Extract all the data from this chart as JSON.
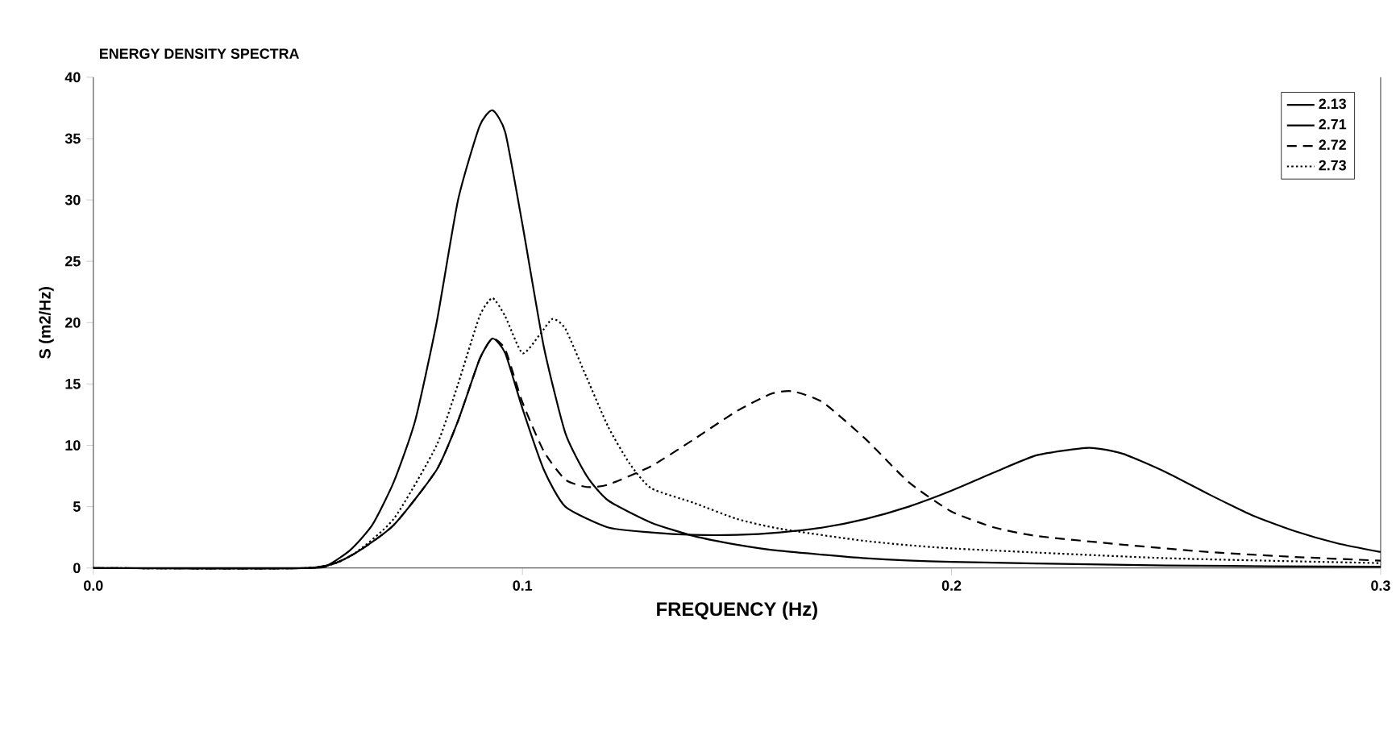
{
  "chart_data": {
    "type": "line",
    "title": "ENERGY DENSITY SPECTRA",
    "xlabel": "FREQUENCY (Hz)",
    "ylabel": "S (m2/Hz)",
    "xlim": [
      0,
      0.3
    ],
    "ylim": [
      0,
      40
    ],
    "xticks": [
      {
        "value": 0,
        "label": "0.0"
      },
      0.1,
      0.2,
      0.3
    ],
    "yticks": [
      0,
      5,
      10,
      15,
      20,
      25,
      30,
      35,
      40
    ],
    "grid": false,
    "legend": "top right",
    "marker": "none",
    "series": [
      {
        "name": "2.13",
        "color": "#000000",
        "line_style": "solid",
        "x": [
          0,
          0.05,
          0.055,
          0.06,
          0.065,
          0.07,
          0.075,
          0.08,
          0.085,
          0.09,
          0.093,
          0.096,
          0.1,
          0.105,
          0.11,
          0.115,
          0.12,
          0.13,
          0.14,
          0.15,
          0.16,
          0.18,
          0.2,
          0.25,
          0.3
        ],
        "values": [
          0,
          0,
          0.3,
          1.5,
          3.5,
          7,
          12,
          20,
          30,
          36,
          37.3,
          35.5,
          28,
          18,
          11,
          7.5,
          5.5,
          3.7,
          2.6,
          1.9,
          1.4,
          0.8,
          0.5,
          0.2,
          0.1
        ]
      },
      {
        "name": "2.71",
        "color": "#000000",
        "line_style": "solid",
        "x": [
          0,
          0.05,
          0.06,
          0.07,
          0.08,
          0.085,
          0.09,
          0.093,
          0.096,
          0.1,
          0.105,
          0.11,
          0.12,
          0.13,
          0.14,
          0.15,
          0.16,
          0.17,
          0.18,
          0.19,
          0.2,
          0.21,
          0.22,
          0.232,
          0.24,
          0.25,
          0.26,
          0.27,
          0.28,
          0.29,
          0.3
        ],
        "values": [
          0,
          0,
          1,
          3.5,
          8,
          12,
          17,
          18.7,
          17.5,
          13,
          8,
          5,
          3.3,
          2.9,
          2.7,
          2.7,
          2.9,
          3.3,
          4,
          5,
          6.3,
          7.8,
          9.2,
          9.8,
          9.3,
          7.8,
          6,
          4.3,
          3,
          2,
          1.3
        ]
      },
      {
        "name": "2.72",
        "color": "#000000",
        "line_style": "dashed",
        "x": [
          0,
          0.05,
          0.06,
          0.07,
          0.08,
          0.085,
          0.09,
          0.093,
          0.096,
          0.1,
          0.105,
          0.11,
          0.115,
          0.12,
          0.13,
          0.14,
          0.15,
          0.158,
          0.163,
          0.17,
          0.18,
          0.19,
          0.2,
          0.21,
          0.22,
          0.24,
          0.26,
          0.28,
          0.3
        ],
        "values": [
          0,
          0,
          1,
          3.5,
          8,
          12,
          17,
          18.7,
          17.8,
          13.5,
          9.5,
          7.2,
          6.6,
          6.8,
          8.3,
          10.5,
          12.8,
          14.2,
          14.4,
          13.5,
          10.5,
          7,
          4.6,
          3.3,
          2.6,
          1.9,
          1.3,
          0.9,
          0.6
        ]
      },
      {
        "name": "2.73",
        "color": "#000000",
        "line_style": "dotted",
        "x": [
          0,
          0.05,
          0.06,
          0.07,
          0.08,
          0.085,
          0.09,
          0.093,
          0.096,
          0.1,
          0.104,
          0.107,
          0.11,
          0.115,
          0.12,
          0.125,
          0.13,
          0.14,
          0.15,
          0.16,
          0.18,
          0.2,
          0.25,
          0.3
        ],
        "values": [
          0,
          0,
          1,
          4,
          10,
          15,
          20.5,
          22,
          20.5,
          17.5,
          19,
          20.3,
          19.5,
          15.5,
          11.5,
          8.5,
          6.5,
          5.3,
          4,
          3.2,
          2.2,
          1.6,
          0.8,
          0.4
        ]
      }
    ]
  }
}
